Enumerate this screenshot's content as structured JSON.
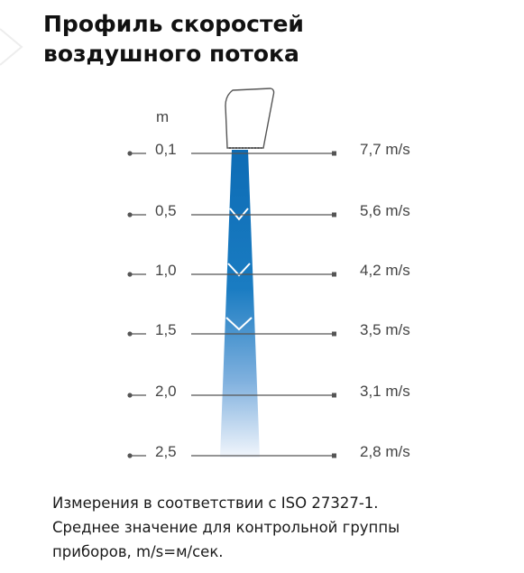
{
  "title_line1": "Профиль скоростей",
  "title_line2": "воздушного потока",
  "unit_label": "m",
  "rows": [
    {
      "distance": "0,1",
      "speed": "7,7 m/s"
    },
    {
      "distance": "0,5",
      "speed": "5,6 m/s"
    },
    {
      "distance": "1,0",
      "speed": "4,2 m/s"
    },
    {
      "distance": "1,5",
      "speed": "3,5 m/s"
    },
    {
      "distance": "2,0",
      "speed": "3,1 m/s"
    },
    {
      "distance": "2,5",
      "speed": "2,8 m/s"
    }
  ],
  "caption_line1": "Измерения в соответствии с ISO 27327-1.",
  "caption_line2": "Среднее значение для контрольной группы",
  "caption_line3": "приборов, m/s=м/сек.",
  "colors": {
    "beam_top": "#0f6fb8",
    "beam_bottom": "#eef3fb",
    "line": "#555555"
  }
}
